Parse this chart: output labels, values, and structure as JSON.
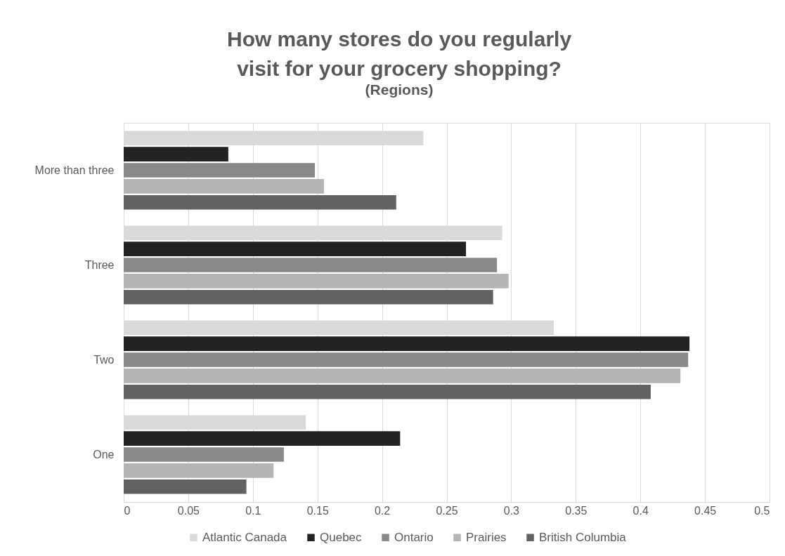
{
  "chart_data": {
    "type": "bar",
    "orientation": "horizontal",
    "title": "How many stores do you regularly visit for your grocery shopping?",
    "subtitle": "(Regions)",
    "categories": [
      "More than three",
      "Three",
      "Two",
      "One"
    ],
    "series": [
      {
        "name": "Atlantic Canada",
        "color": "#d9d9d9",
        "values": [
          0.232,
          0.293,
          0.333,
          0.141
        ]
      },
      {
        "name": "Quebec",
        "color": "#232323",
        "values": [
          0.081,
          0.265,
          0.438,
          0.214
        ]
      },
      {
        "name": "Ontario",
        "color": "#898989",
        "values": [
          0.148,
          0.289,
          0.437,
          0.124
        ]
      },
      {
        "name": "Prairies",
        "color": "#b4b4b4",
        "values": [
          0.155,
          0.298,
          0.431,
          0.116
        ]
      },
      {
        "name": "British Columbia",
        "color": "#626262",
        "values": [
          0.211,
          0.286,
          0.408,
          0.095
        ]
      }
    ],
    "xlim": [
      0,
      0.5
    ],
    "xticks": [
      0,
      0.05,
      0.1,
      0.15,
      0.2,
      0.25,
      0.3,
      0.35,
      0.4,
      0.45,
      0.5
    ],
    "grid": "x",
    "legend": "bottom"
  }
}
